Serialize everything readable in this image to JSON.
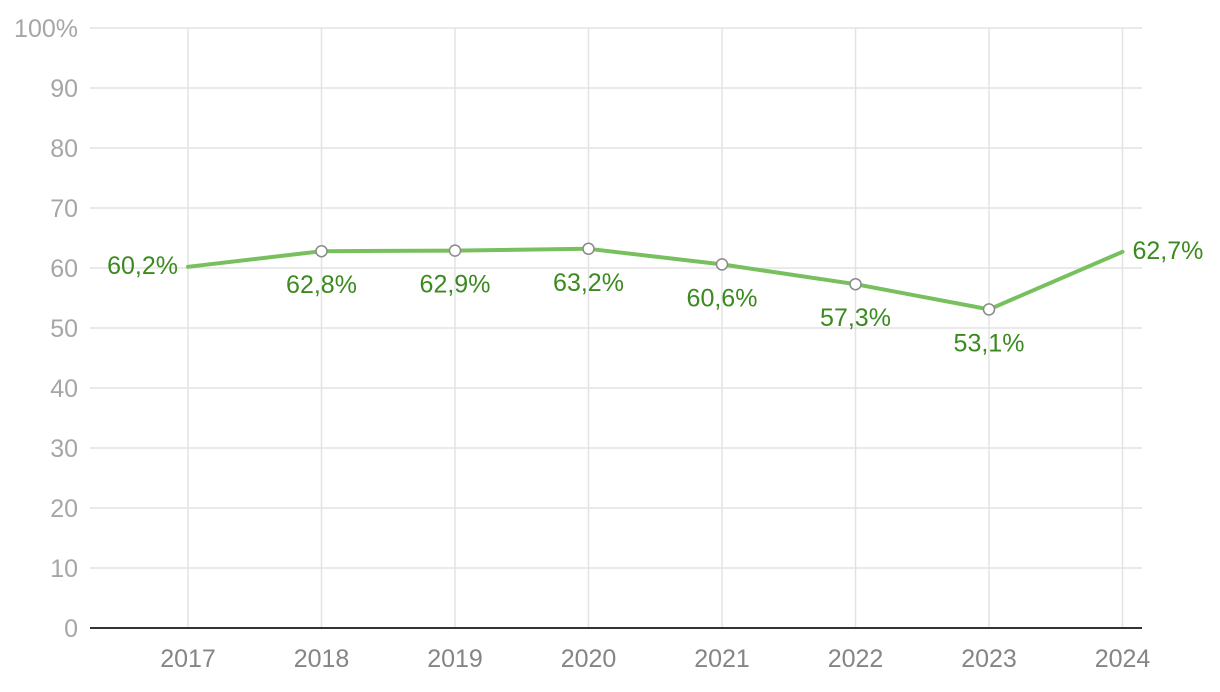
{
  "colors": {
    "series": "#77c05d",
    "label": "#3b8a1f",
    "marker_stroke": "#8a8a8a"
  },
  "chart_data": {
    "type": "line",
    "title": "",
    "xlabel": "",
    "ylabel": "",
    "categories": [
      "2017",
      "2018",
      "2019",
      "2020",
      "2021",
      "2022",
      "2023",
      "2024"
    ],
    "series": [
      {
        "values": [
          60.2,
          62.8,
          62.9,
          63.2,
          60.6,
          57.3,
          53.1,
          62.7
        ],
        "labels": [
          "60,2%",
          "62,8%",
          "62,9%",
          "63,2%",
          "60,6%",
          "57,3%",
          "53,1%",
          "62,7%"
        ]
      }
    ],
    "ylim": [
      0,
      100
    ],
    "yticks": [
      0,
      10,
      20,
      30,
      40,
      50,
      60,
      70,
      80,
      90,
      100
    ],
    "ytick_labels": [
      "0",
      "10",
      "20",
      "30",
      "40",
      "50",
      "60",
      "70",
      "80",
      "90",
      "100%"
    ],
    "grid": true,
    "legend": "none"
  }
}
